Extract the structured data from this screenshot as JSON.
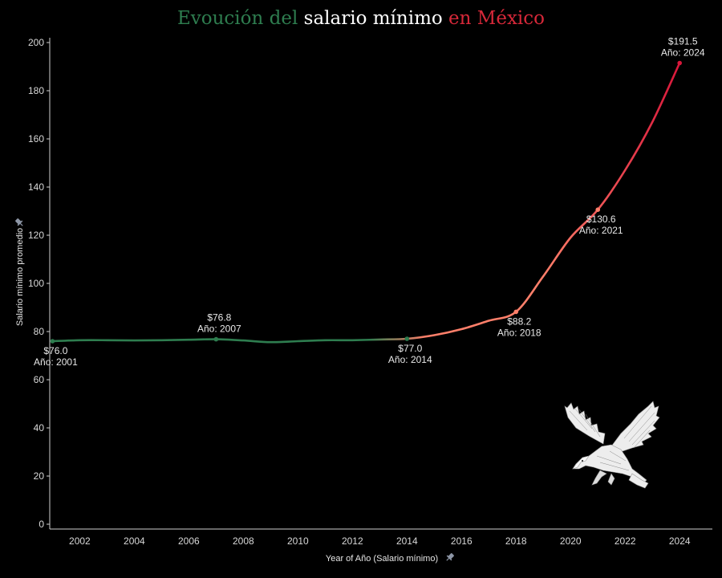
{
  "title": {
    "part1": "Evoución del",
    "part2": "salario mínimo",
    "part3": "en México",
    "color1": "#2e7d4f",
    "color2": "#ffffff",
    "color3": "#d62839"
  },
  "chart_data": {
    "type": "line",
    "xlabel": "Year of Año (Salario mínimo)",
    "ylabel": "Salario mínimo promedio",
    "xlim": [
      2000.9,
      2025.2
    ],
    "ylim": [
      -2,
      202
    ],
    "x_ticks": [
      2002,
      2004,
      2006,
      2008,
      2010,
      2012,
      2014,
      2016,
      2018,
      2020,
      2022,
      2024
    ],
    "y_ticks": [
      0,
      20,
      40,
      60,
      80,
      100,
      120,
      140,
      160,
      180,
      200
    ],
    "grid": false,
    "series": [
      {
        "x": [
          2001,
          2002,
          2003,
          2004,
          2005,
          2006,
          2007,
          2008,
          2009,
          2010,
          2011,
          2012,
          2013,
          2014,
          2015,
          2016,
          2017,
          2018,
          2019,
          2020,
          2021,
          2022,
          2023,
          2024
        ],
        "values": [
          76.0,
          76.4,
          76.4,
          76.3,
          76.4,
          76.6,
          76.8,
          76.3,
          75.6,
          76.0,
          76.4,
          76.4,
          76.7,
          77.0,
          78.5,
          81.0,
          84.5,
          88.2,
          103.0,
          119.0,
          130.6,
          147.0,
          167.0,
          191.5
        ],
        "color_start": "#2e7d4f",
        "color_mid": "#ff7f6a",
        "color_end": "#d8173a"
      }
    ],
    "annotations": [
      {
        "x": 2001,
        "y": 76.0,
        "value": "$76.0",
        "year": "Año: 2001",
        "pos": "below"
      },
      {
        "x": 2007,
        "y": 76.8,
        "value": "$76.8",
        "year": "Año: 2007",
        "pos": "above"
      },
      {
        "x": 2014,
        "y": 77.0,
        "value": "$77.0",
        "year": "Año: 2014",
        "pos": "below"
      },
      {
        "x": 2018,
        "y": 88.2,
        "value": "$88.2",
        "year": "Año: 2018",
        "pos": "below"
      },
      {
        "x": 2021,
        "y": 130.6,
        "value": "$130.6",
        "year": "Año: 2021",
        "pos": "below"
      },
      {
        "x": 2024,
        "y": 191.5,
        "value": "$191.5",
        "year": "Año: 2024",
        "pos": "above"
      }
    ],
    "decoration": "eagle-illustration"
  }
}
